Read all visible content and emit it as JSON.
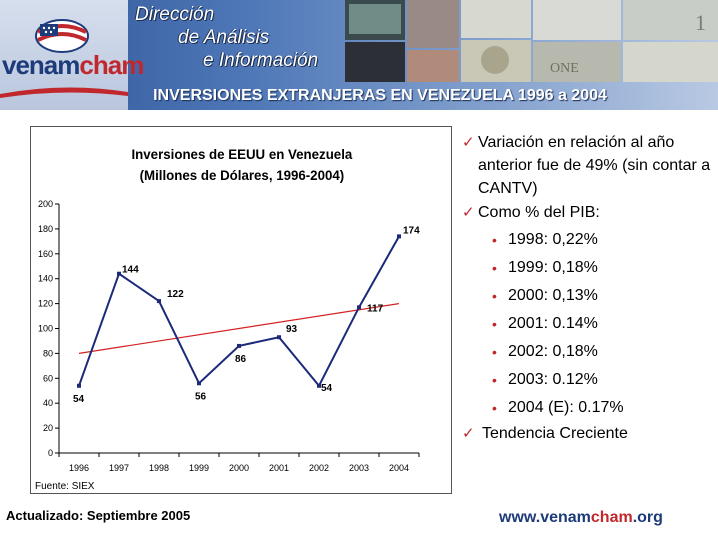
{
  "header": {
    "logo_text_a": "venam",
    "logo_text_b": "cham",
    "dept_lines": [
      "Dirección",
      "de Análisis",
      "e Información"
    ],
    "title": "INVERSIONES EXTRANJERAS EN VENEZUELA 1996 a 2004"
  },
  "chart_data": {
    "type": "line",
    "title": "Inversiones de EEUU en Venezuela",
    "subtitle": "(Millones de Dólares, 1996-2004)",
    "categories": [
      "1996",
      "1997",
      "1998",
      "1999",
      "2000",
      "2001",
      "2002",
      "2003",
      "2004"
    ],
    "series": [
      {
        "values": [
          54,
          144,
          122,
          56,
          86,
          93,
          54,
          117,
          174
        ],
        "color": "#1c2a7a"
      }
    ],
    "trendline": {
      "start": 80,
      "end": 120,
      "color": "#d42020"
    },
    "data_labels": [
      "54",
      "144",
      "122",
      "56",
      "86",
      "93",
      "54",
      "117",
      "174"
    ],
    "ylim": [
      0,
      200
    ],
    "yticks": [
      "0",
      "20",
      "40",
      "60",
      "80",
      "100",
      "120",
      "140",
      "160",
      "180",
      "200"
    ],
    "source": "Fuente: SIEX"
  },
  "notes": {
    "variation": "Variación en relación al año anterior fue de 49% (sin contar a CANTV)",
    "pib_heading": "Como % del PIB:",
    "pib_items": [
      "1998: 0,22%",
      "1999: 0,18%",
      "2000: 0,13%",
      "2001: 0.14%",
      "2002: 0,18%",
      "2003: 0.12%",
      "2004 (E): 0.17%"
    ],
    "trend": "Tendencia Creciente"
  },
  "footer": {
    "updated": "Actualizado: Septiembre 2005",
    "site_a": "www.venam",
    "site_b": "cham",
    "site_c": ".org"
  }
}
